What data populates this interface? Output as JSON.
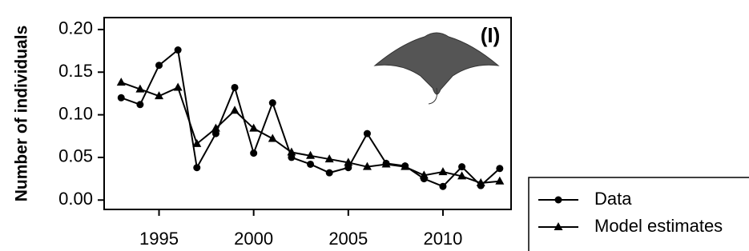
{
  "chart_data": {
    "type": "line",
    "ylabel": "Number of individuals",
    "annotation": "(I)",
    "x": [
      1993,
      1994,
      1995,
      1996,
      1997,
      1998,
      1999,
      2000,
      2001,
      2002,
      2003,
      2004,
      2005,
      2006,
      2007,
      2008,
      2009,
      2010,
      2011,
      2012,
      2013
    ],
    "series": [
      {
        "name": "Data",
        "color": "#000000",
        "marker": "circle",
        "values": [
          0.12,
          0.112,
          0.158,
          0.176,
          0.038,
          0.078,
          0.132,
          0.055,
          0.114,
          0.05,
          0.042,
          0.032,
          0.038,
          0.078,
          0.043,
          0.04,
          0.025,
          0.016,
          0.039,
          0.017,
          0.037
        ]
      },
      {
        "name": "Model estimates",
        "color": "#000000",
        "marker": "triangle",
        "values": [
          0.138,
          0.13,
          0.122,
          0.132,
          0.066,
          0.084,
          0.105,
          0.084,
          0.072,
          0.056,
          0.052,
          0.048,
          0.044,
          0.039,
          0.042,
          0.039,
          0.029,
          0.033,
          0.028,
          0.02,
          0.022
        ]
      }
    ],
    "xlim": [
      1992.1,
      2013.6
    ],
    "xticks": [
      1995,
      2000,
      2005,
      2010
    ],
    "ylim": [
      -0.011,
      0.214
    ],
    "yticks": [
      {
        "value": 0,
        "label": "0.00"
      },
      {
        "value": 0.05,
        "label": "0.05"
      },
      {
        "value": 0.1,
        "label": "0.10"
      },
      {
        "value": 0.15,
        "label": "0.15"
      },
      {
        "value": 0.2,
        "label": "0.20"
      }
    ]
  }
}
